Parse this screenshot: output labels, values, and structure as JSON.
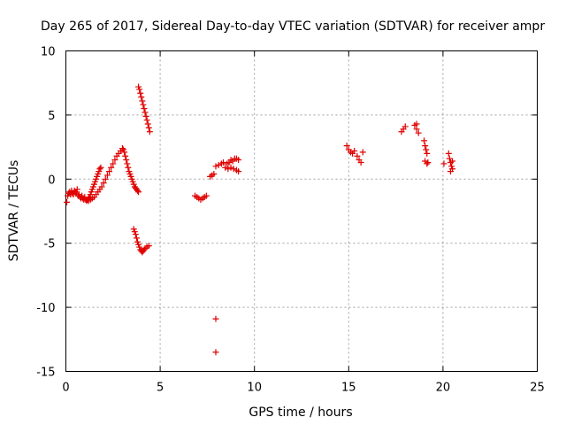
{
  "chart_data": {
    "type": "scatter",
    "title": "Day 265 of 2017, Sidereal Day-to-day VTEC variation (SDTVAR) for receiver ampr",
    "xlabel": "GPS time / hours",
    "ylabel": "SDTVAR / TECUs",
    "xlim": [
      0,
      25
    ],
    "ylim": [
      -15,
      10
    ],
    "xticks": [
      0,
      5,
      10,
      15,
      20,
      25
    ],
    "yticks": [
      -15,
      -10,
      -5,
      0,
      5,
      10
    ],
    "xtick_labels": [
      "0",
      "5",
      "10",
      "15",
      "20",
      "25"
    ],
    "ytick_labels": [
      "-15",
      "-10",
      "-5",
      "0",
      "5",
      "10"
    ],
    "grid": true,
    "marker": "plus",
    "color": "#e00000",
    "series": [
      {
        "name": "SDTVAR",
        "points": [
          [
            0.05,
            -1.8
          ],
          [
            0.1,
            -1.3
          ],
          [
            0.15,
            -1.1
          ],
          [
            0.2,
            -1.0
          ],
          [
            0.25,
            -1.2
          ],
          [
            0.3,
            -0.9
          ],
          [
            0.35,
            -1.1
          ],
          [
            0.4,
            -1.2
          ],
          [
            0.45,
            -0.9
          ],
          [
            0.5,
            -1.0
          ],
          [
            0.55,
            -1.1
          ],
          [
            0.6,
            -0.8
          ],
          [
            0.65,
            -1.3
          ],
          [
            0.7,
            -1.2
          ],
          [
            0.75,
            -1.4
          ],
          [
            0.8,
            -1.5
          ],
          [
            0.85,
            -1.3
          ],
          [
            0.9,
            -1.5
          ],
          [
            0.95,
            -1.6
          ],
          [
            1.0,
            -1.4
          ],
          [
            1.05,
            -1.6
          ],
          [
            1.1,
            -1.7
          ],
          [
            1.15,
            -1.6
          ],
          [
            1.2,
            -1.5
          ],
          [
            1.25,
            -1.4
          ],
          [
            1.3,
            -1.2
          ],
          [
            1.35,
            -1.0
          ],
          [
            1.4,
            -0.8
          ],
          [
            1.45,
            -0.6
          ],
          [
            1.5,
            -0.4
          ],
          [
            1.55,
            -0.2
          ],
          [
            1.6,
            0.0
          ],
          [
            1.65,
            0.2
          ],
          [
            1.7,
            0.4
          ],
          [
            1.75,
            0.6
          ],
          [
            1.8,
            0.8
          ],
          [
            1.85,
            0.9
          ],
          [
            1.2,
            -1.7
          ],
          [
            1.3,
            -1.6
          ],
          [
            1.4,
            -1.5
          ],
          [
            1.5,
            -1.4
          ],
          [
            1.6,
            -1.2
          ],
          [
            1.7,
            -1.0
          ],
          [
            1.8,
            -0.8
          ],
          [
            1.9,
            -0.6
          ],
          [
            2.0,
            -0.3
          ],
          [
            2.1,
            0.0
          ],
          [
            2.2,
            0.3
          ],
          [
            2.3,
            0.6
          ],
          [
            2.4,
            0.9
          ],
          [
            2.5,
            1.2
          ],
          [
            2.6,
            1.5
          ],
          [
            2.7,
            1.8
          ],
          [
            2.8,
            2.0
          ],
          [
            2.9,
            2.2
          ],
          [
            3.0,
            2.4
          ],
          [
            3.05,
            2.3
          ],
          [
            3.1,
            2.1
          ],
          [
            3.15,
            1.8
          ],
          [
            3.2,
            1.5
          ],
          [
            3.25,
            1.2
          ],
          [
            3.3,
            0.9
          ],
          [
            3.35,
            0.6
          ],
          [
            3.4,
            0.4
          ],
          [
            3.45,
            0.2
          ],
          [
            3.5,
            0.0
          ],
          [
            3.55,
            -0.2
          ],
          [
            3.6,
            -0.4
          ],
          [
            3.65,
            -0.6
          ],
          [
            3.7,
            -0.7
          ],
          [
            3.75,
            -0.8
          ],
          [
            3.8,
            -0.9
          ],
          [
            3.85,
            -1.0
          ],
          [
            3.85,
            7.2
          ],
          [
            3.9,
            7.0
          ],
          [
            3.95,
            6.7
          ],
          [
            4.0,
            6.4
          ],
          [
            4.05,
            6.1
          ],
          [
            4.1,
            5.8
          ],
          [
            4.15,
            5.5
          ],
          [
            4.2,
            5.2
          ],
          [
            4.25,
            4.9
          ],
          [
            4.3,
            4.6
          ],
          [
            4.35,
            4.3
          ],
          [
            4.4,
            4.0
          ],
          [
            4.45,
            3.7
          ],
          [
            3.6,
            -3.9
          ],
          [
            3.65,
            -4.1
          ],
          [
            3.7,
            -4.3
          ],
          [
            3.75,
            -4.6
          ],
          [
            3.8,
            -4.9
          ],
          [
            3.85,
            -5.1
          ],
          [
            3.9,
            -5.3
          ],
          [
            3.95,
            -5.5
          ],
          [
            4.0,
            -5.6
          ],
          [
            4.05,
            -5.7
          ],
          [
            4.1,
            -5.6
          ],
          [
            4.15,
            -5.5
          ],
          [
            4.2,
            -5.4
          ],
          [
            4.3,
            -5.3
          ],
          [
            4.4,
            -5.2
          ],
          [
            6.85,
            -1.3
          ],
          [
            6.95,
            -1.4
          ],
          [
            7.05,
            -1.5
          ],
          [
            7.15,
            -1.6
          ],
          [
            7.25,
            -1.5
          ],
          [
            7.35,
            -1.4
          ],
          [
            7.45,
            -1.3
          ],
          [
            7.65,
            0.2
          ],
          [
            7.75,
            0.3
          ],
          [
            7.85,
            0.4
          ],
          [
            7.95,
            1.0
          ],
          [
            8.1,
            1.1
          ],
          [
            8.25,
            1.2
          ],
          [
            8.35,
            1.3
          ],
          [
            8.45,
            0.9
          ],
          [
            8.55,
            1.2
          ],
          [
            8.65,
            1.3
          ],
          [
            8.75,
            1.5
          ],
          [
            8.85,
            1.4
          ],
          [
            8.95,
            1.6
          ],
          [
            9.05,
            1.6
          ],
          [
            9.15,
            1.5
          ],
          [
            8.6,
            0.8
          ],
          [
            8.75,
            0.9
          ],
          [
            8.9,
            0.8
          ],
          [
            9.05,
            0.7
          ],
          [
            9.15,
            0.6
          ],
          [
            7.95,
            -10.9
          ],
          [
            7.95,
            -13.5
          ],
          [
            14.9,
            2.6
          ],
          [
            15.0,
            2.3
          ],
          [
            15.1,
            2.1
          ],
          [
            15.2,
            2.0
          ],
          [
            15.3,
            2.2
          ],
          [
            15.45,
            1.8
          ],
          [
            15.55,
            1.5
          ],
          [
            15.65,
            1.3
          ],
          [
            15.75,
            2.1
          ],
          [
            17.8,
            3.7
          ],
          [
            17.9,
            3.9
          ],
          [
            18.0,
            4.1
          ],
          [
            18.5,
            4.2
          ],
          [
            18.6,
            3.9
          ],
          [
            18.7,
            3.6
          ],
          [
            18.6,
            4.3
          ],
          [
            19.0,
            3.0
          ],
          [
            19.05,
            2.6
          ],
          [
            19.1,
            2.3
          ],
          [
            19.15,
            2.0
          ],
          [
            19.05,
            1.4
          ],
          [
            19.15,
            1.2
          ],
          [
            19.2,
            1.3
          ],
          [
            20.05,
            1.2
          ],
          [
            20.3,
            2.0
          ],
          [
            20.35,
            1.6
          ],
          [
            20.4,
            1.3
          ],
          [
            20.45,
            1.0
          ],
          [
            20.5,
            0.8
          ],
          [
            20.4,
            0.6
          ],
          [
            20.5,
            1.4
          ]
        ]
      }
    ]
  }
}
